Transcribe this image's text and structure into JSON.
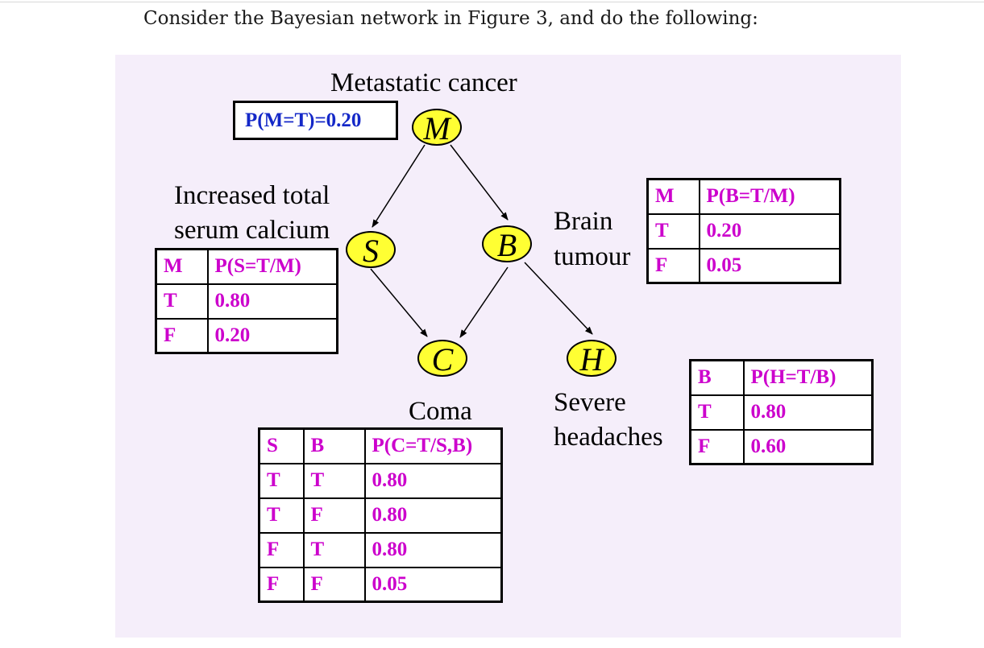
{
  "intro_text": "Consider the Bayesian network in Figure 3, and do the following:",
  "colors": {
    "figure_background": "#f5eefa",
    "node_fill": "#ffff33",
    "table_text": "#cc00cc",
    "prior_text": "#1428c8"
  },
  "nodes": {
    "M": {
      "symbol": "M",
      "caption": "Metastatic cancer"
    },
    "S": {
      "symbol": "S",
      "caption_line1": "Increased total",
      "caption_line2": "serum calcium"
    },
    "B": {
      "symbol": "B",
      "caption_line1": "Brain",
      "caption_line2": "tumour"
    },
    "C": {
      "symbol": "C",
      "caption": "Coma"
    },
    "H": {
      "symbol": "H",
      "caption_line1": "Severe",
      "caption_line2": "headaches"
    }
  },
  "edges": [
    {
      "from": "M",
      "to": "S"
    },
    {
      "from": "M",
      "to": "B"
    },
    {
      "from": "S",
      "to": "C"
    },
    {
      "from": "B",
      "to": "C"
    },
    {
      "from": "B",
      "to": "H"
    }
  ],
  "prior_M": "P(M=T)=0.20",
  "cpt_S": {
    "headers": [
      "M",
      "P(S=T/M)"
    ],
    "rows": [
      [
        "T",
        "0.80"
      ],
      [
        "F",
        "0.20"
      ]
    ]
  },
  "cpt_B": {
    "headers": [
      "M",
      "P(B=T/M)"
    ],
    "rows": [
      [
        "T",
        "0.20"
      ],
      [
        "F",
        "0.05"
      ]
    ]
  },
  "cpt_H": {
    "headers": [
      "B",
      "P(H=T/B)"
    ],
    "rows": [
      [
        "T",
        "0.80"
      ],
      [
        "F",
        "0.60"
      ]
    ]
  },
  "cpt_C": {
    "headers": [
      "S",
      "B",
      "P(C=T/S,B)"
    ],
    "rows": [
      [
        "T",
        "T",
        "0.80"
      ],
      [
        "T",
        "F",
        "0.80"
      ],
      [
        "F",
        "T",
        "0.80"
      ],
      [
        "F",
        "F",
        "0.05"
      ]
    ]
  }
}
